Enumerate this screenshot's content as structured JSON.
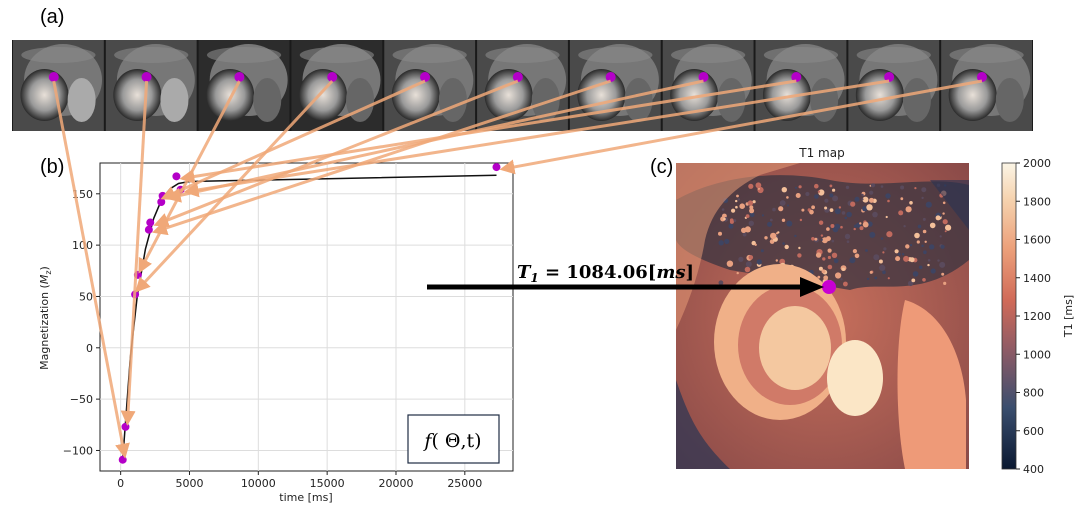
{
  "panels": {
    "a": "(a)",
    "b": "(b)",
    "c": "(c)"
  },
  "colors": {
    "point": "#b400c8",
    "fit": "#111111",
    "arrow": "#f0a878",
    "t1_marker": "#c800d2"
  },
  "chart_data": [
    {
      "type": "scatter",
      "panel": "b",
      "title": "",
      "xlabel": "time [ms]",
      "ylabel": "Magnetization (M_z)",
      "ylabel_main": "Magnetization (",
      "ylabel_sym": "M",
      "ylabel_sub": "z",
      "ylabel_close": ")",
      "xlim": [
        -1500,
        28500
      ],
      "ylim": [
        -120,
        180
      ],
      "xticks": [
        0,
        5000,
        10000,
        15000,
        20000,
        25000
      ],
      "xtick_labels": [
        "0",
        "5000",
        "10000",
        "15000",
        "20000",
        "25000"
      ],
      "yticks": [
        -100,
        -50,
        0,
        50,
        100,
        150
      ],
      "ytick_labels": [
        "−100",
        "−50",
        "0",
        "50",
        "100",
        "150"
      ],
      "grid": true,
      "series": [
        {
          "name": "measured",
          "kind": "points",
          "x": [
            150,
            350,
            1050,
            1250,
            2050,
            2150,
            2950,
            3050,
            4050,
            4350,
            27300
          ],
          "y": [
            -109,
            -77,
            52,
            71,
            115,
            122,
            142,
            148,
            167,
            154,
            176
          ]
        },
        {
          "name": "fit",
          "kind": "line",
          "x": [
            150,
            700,
            1200,
            1800,
            2400,
            3000,
            3600,
            4200,
            5000,
            27300
          ],
          "y": [
            -109,
            -10,
            50,
            96,
            126,
            145,
            155,
            160,
            162,
            168
          ]
        }
      ],
      "formula": {
        "func": "f",
        "args": "( Θ,t)"
      }
    },
    {
      "type": "heatmap",
      "panel": "c",
      "title": "T1 map",
      "colorbar_label": "T1 [ms]",
      "clim": [
        400,
        2000
      ],
      "colorbar_ticks": [
        400,
        600,
        800,
        1000,
        1200,
        1400,
        1600,
        1800,
        2000
      ],
      "colorbar_tick_labels": [
        "400",
        "600",
        "800",
        "1000",
        "1200",
        "1400",
        "1600",
        "1800",
        "2000"
      ],
      "annotation": {
        "symbol": "T",
        "sub": "1",
        "equals": " = 1084.06[",
        "unit": "ms",
        "close": "]"
      }
    }
  ]
}
